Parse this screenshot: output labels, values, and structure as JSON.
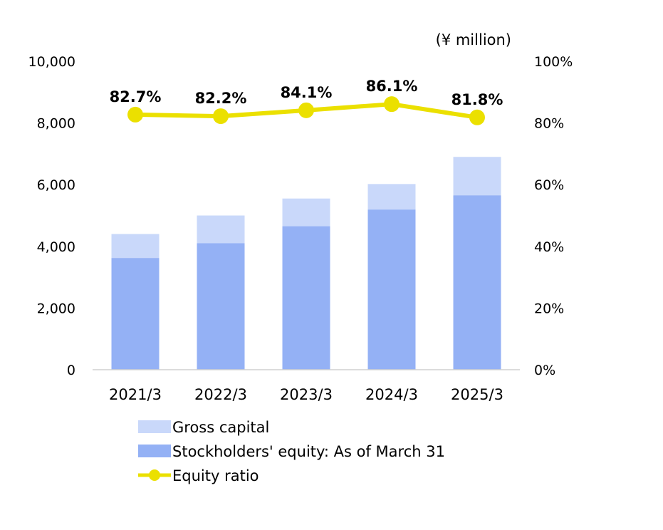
{
  "chart_data": {
    "type": "bar",
    "unit_label": "(¥ million)",
    "categories": [
      "2021/3",
      "2022/3",
      "2023/3",
      "2024/3",
      "2025/3"
    ],
    "series": [
      {
        "name": "Gross capital",
        "kind": "bar",
        "axis": "left",
        "color": "#c9d8fa",
        "values": [
          4400,
          5000,
          5550,
          6020,
          6900
        ]
      },
      {
        "name": "Stockholders' equity: As of March 31",
        "kind": "bar",
        "axis": "left",
        "color": "#94b1f5",
        "values": [
          3620,
          4100,
          4650,
          5190,
          5650
        ]
      },
      {
        "name": "Equity ratio",
        "kind": "line",
        "axis": "right",
        "color": "#ebe000",
        "values": [
          82.7,
          82.2,
          84.1,
          86.1,
          81.8
        ],
        "labels": [
          "82.7%",
          "82.2%",
          "84.1%",
          "86.1%",
          "81.8%"
        ]
      }
    ],
    "y_left": {
      "min": 0,
      "max": 10000,
      "ticks": [
        "0",
        "2,000",
        "4,000",
        "6,000",
        "8,000",
        "10,000"
      ]
    },
    "y_right": {
      "min": 0,
      "max": 100,
      "ticks": [
        "0%",
        "20%",
        "40%",
        "60%",
        "80%",
        "100%"
      ]
    },
    "grid": false,
    "legend_position": "bottom"
  }
}
